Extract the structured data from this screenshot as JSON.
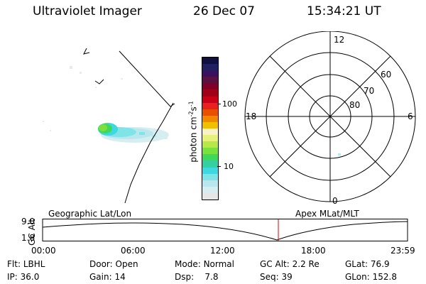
{
  "header": {
    "title": "Ultraviolet Imager",
    "date": "26 Dec 07",
    "time": "15:34:21 UT"
  },
  "colorbar": {
    "unit_main": "photon cm",
    "unit_sup1": "-2",
    "unit_s": "s",
    "unit_sup2": "-1",
    "tick_100": "100",
    "tick_10": "10",
    "colors": [
      "#e6e6e6",
      "#d7eef0",
      "#b8e8ee",
      "#7fe3e8",
      "#40d8e0",
      "#35d0a0",
      "#40d85a",
      "#7ae040",
      "#b7e84a",
      "#e6f07a",
      "#f7f0c8",
      "#f0c000",
      "#f08800",
      "#e85000",
      "#e82020",
      "#c80018",
      "#a00018",
      "#80002a",
      "#5a1040",
      "#3a1060",
      "#202060",
      "#101040"
    ]
  },
  "polar": {
    "labels_hour": {
      "h12": "12",
      "h18": "18",
      "h6": "6",
      "h0": "0"
    },
    "labels_lat": {
      "l60": "60",
      "l70": "70",
      "l80": "80"
    }
  },
  "timeline": {
    "left_label": "Geographic Lat/Lon",
    "right_label": "Apex MLat/MLT",
    "axis_title": "GC Alt",
    "y_max": "9.0",
    "y_min": "1.8",
    "x_ticks": [
      "00:00",
      "06:00",
      "12:00",
      "18:00",
      "23:59"
    ],
    "current_marker_color": "#e00000"
  },
  "footer": {
    "flt_label": "Flt:",
    "flt_value": "LBHL",
    "ip_label": "IP:",
    "ip_value": "36.0",
    "door_label": "Door:",
    "door_value": "Open",
    "gain_label": "Gain:",
    "gain_value": "14",
    "mode_label": "Mode:",
    "mode_value": "Normal",
    "dsp_label": "Dsp:",
    "dsp_value": "7.8",
    "gcalt_label": "GC Alt:",
    "gcalt_value": "2.2 Re",
    "seq_label": "Seq:",
    "seq_value": "39",
    "glat_label": "GLat:",
    "glat_value": "76.9",
    "glon_label": "GLon:",
    "glon_value": "152.8"
  }
}
